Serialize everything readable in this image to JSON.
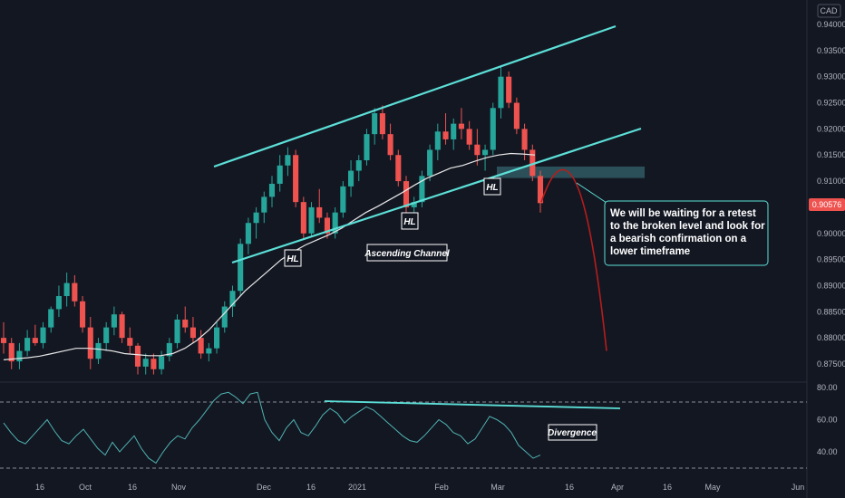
{
  "currency": "CAD",
  "current_price": "0.90576",
  "colors": {
    "background": "#131722",
    "up": "#26a69a",
    "down": "#ef5350",
    "channel": "#5ce0d8",
    "ma": "#e8e8e8",
    "projection": "#b71c1c",
    "zone": "#3a6e78",
    "rsi": "#4fb3b3"
  },
  "annotations": {
    "hl1": "HL",
    "hl2": "HL",
    "hl3": "HL",
    "channel_label": "Ascending Channel",
    "divergence_label": "Divergence",
    "note_lines": [
      "We will be waiting for a retest",
      "to the broken level and look for",
      "a bearish confirmation on a",
      "lower timeframe"
    ]
  },
  "chart_data": {
    "type": "candlestick",
    "price_axis": {
      "ticks": [
        "0.94000",
        "0.93500",
        "0.93000",
        "0.92500",
        "0.92000",
        "0.91500",
        "0.91000",
        "0.90500",
        "0.90000",
        "0.89500",
        "0.89000",
        "0.88500",
        "0.88000",
        "0.87500"
      ],
      "range": [
        0.8728,
        0.943
      ]
    },
    "rsi_axis": {
      "ticks": [
        "80.00",
        "60.00",
        "40.00"
      ],
      "range": [
        26,
        83
      ],
      "levels": [
        70,
        30
      ]
    },
    "x_labels": [
      "16",
      "Oct",
      "16",
      "Nov",
      "Dec",
      "16",
      "2021",
      "Feb",
      "Mar",
      "16",
      "Apr",
      "16",
      "May",
      "Jun"
    ],
    "ohlc": [
      [
        0.88,
        0.883,
        0.877,
        0.879
      ],
      [
        0.879,
        0.88,
        0.874,
        0.8755
      ],
      [
        0.8755,
        0.879,
        0.874,
        0.8775
      ],
      [
        0.8775,
        0.8815,
        0.8765,
        0.88
      ],
      [
        0.88,
        0.8825,
        0.8785,
        0.879
      ],
      [
        0.879,
        0.883,
        0.878,
        0.882
      ],
      [
        0.882,
        0.886,
        0.881,
        0.8855
      ],
      [
        0.8855,
        0.89,
        0.884,
        0.888
      ],
      [
        0.888,
        0.8925,
        0.886,
        0.8905
      ],
      [
        0.8905,
        0.892,
        0.886,
        0.887
      ],
      [
        0.887,
        0.888,
        0.881,
        0.882
      ],
      [
        0.882,
        0.884,
        0.874,
        0.876
      ],
      [
        0.876,
        0.88,
        0.875,
        0.879
      ],
      [
        0.879,
        0.883,
        0.8775,
        0.882
      ],
      [
        0.882,
        0.886,
        0.8805,
        0.8845
      ],
      [
        0.8845,
        0.885,
        0.879,
        0.88
      ],
      [
        0.88,
        0.882,
        0.877,
        0.8785
      ],
      [
        0.8785,
        0.879,
        0.873,
        0.8745
      ],
      [
        0.8745,
        0.877,
        0.873,
        0.876
      ],
      [
        0.876,
        0.877,
        0.873,
        0.874
      ],
      [
        0.874,
        0.8775,
        0.873,
        0.8765
      ],
      [
        0.8765,
        0.88,
        0.8755,
        0.879
      ],
      [
        0.879,
        0.8845,
        0.878,
        0.8835
      ],
      [
        0.8835,
        0.886,
        0.881,
        0.882
      ],
      [
        0.882,
        0.884,
        0.879,
        0.88
      ],
      [
        0.88,
        0.8815,
        0.876,
        0.877
      ],
      [
        0.877,
        0.879,
        0.8755,
        0.878
      ],
      [
        0.878,
        0.883,
        0.877,
        0.882
      ],
      [
        0.882,
        0.887,
        0.881,
        0.886
      ],
      [
        0.886,
        0.89,
        0.884,
        0.889
      ],
      [
        0.889,
        0.899,
        0.888,
        0.898
      ],
      [
        0.898,
        0.903,
        0.896,
        0.902
      ],
      [
        0.902,
        0.905,
        0.899,
        0.904
      ],
      [
        0.904,
        0.908,
        0.902,
        0.907
      ],
      [
        0.907,
        0.911,
        0.905,
        0.9095
      ],
      [
        0.9095,
        0.915,
        0.908,
        0.913
      ],
      [
        0.913,
        0.9165,
        0.911,
        0.915
      ],
      [
        0.915,
        0.916,
        0.905,
        0.906
      ],
      [
        0.906,
        0.907,
        0.899,
        0.9
      ],
      [
        0.9,
        0.906,
        0.8995,
        0.905
      ],
      [
        0.905,
        0.9085,
        0.902,
        0.903
      ],
      [
        0.903,
        0.904,
        0.899,
        0.9
      ],
      [
        0.9,
        0.905,
        0.899,
        0.904
      ],
      [
        0.904,
        0.91,
        0.903,
        0.909
      ],
      [
        0.909,
        0.914,
        0.907,
        0.912
      ],
      [
        0.912,
        0.915,
        0.91,
        0.914
      ],
      [
        0.914,
        0.92,
        0.913,
        0.919
      ],
      [
        0.919,
        0.924,
        0.917,
        0.923
      ],
      [
        0.923,
        0.9245,
        0.918,
        0.919
      ],
      [
        0.919,
        0.921,
        0.914,
        0.915
      ],
      [
        0.915,
        0.916,
        0.909,
        0.91
      ],
      [
        0.91,
        0.911,
        0.904,
        0.905
      ],
      [
        0.905,
        0.907,
        0.904,
        0.906
      ],
      [
        0.906,
        0.912,
        0.905,
        0.911
      ],
      [
        0.911,
        0.917,
        0.91,
        0.916
      ],
      [
        0.916,
        0.921,
        0.914,
        0.9195
      ],
      [
        0.9195,
        0.923,
        0.917,
        0.918
      ],
      [
        0.918,
        0.922,
        0.916,
        0.921
      ],
      [
        0.921,
        0.924,
        0.918,
        0.92
      ],
      [
        0.92,
        0.9215,
        0.916,
        0.917
      ],
      [
        0.917,
        0.92,
        0.913,
        0.915
      ],
      [
        0.915,
        0.917,
        0.912,
        0.916
      ],
      [
        0.916,
        0.925,
        0.915,
        0.924
      ],
      [
        0.924,
        0.932,
        0.922,
        0.93
      ],
      [
        0.93,
        0.931,
        0.924,
        0.925
      ],
      [
        0.925,
        0.926,
        0.919,
        0.92
      ],
      [
        0.92,
        0.921,
        0.914,
        0.916
      ],
      [
        0.916,
        0.917,
        0.91,
        0.911
      ],
      [
        0.911,
        0.912,
        0.904,
        0.9058
      ]
    ],
    "ma": [
      0.8758,
      0.876,
      0.8762,
      0.8765,
      0.877,
      0.8775,
      0.878,
      0.878,
      0.8778,
      0.8775,
      0.877,
      0.8768,
      0.8766,
      0.8766,
      0.877,
      0.878,
      0.8795,
      0.8815,
      0.884,
      0.8865,
      0.889,
      0.891,
      0.893,
      0.895,
      0.8965,
      0.8978,
      0.8988,
      0.8998,
      0.901,
      0.9025,
      0.904,
      0.9052,
      0.9065,
      0.9078,
      0.9092,
      0.9105,
      0.9115,
      0.9125,
      0.913,
      0.9138,
      0.9145,
      0.915,
      0.9153,
      0.9152,
      0.915
    ],
    "rsi": [
      58,
      52,
      47,
      45,
      50,
      55,
      60,
      53,
      47,
      45,
      50,
      54,
      48,
      42,
      38,
      46,
      40,
      45,
      50,
      42,
      36,
      33,
      40,
      46,
      50,
      48,
      55,
      60,
      66,
      72,
      76,
      77,
      74,
      70,
      76,
      77,
      60,
      52,
      47,
      55,
      60,
      52,
      50,
      56,
      63,
      67,
      64,
      58,
      62,
      65,
      68,
      66,
      62,
      58,
      54,
      50,
      47,
      46,
      50,
      55,
      60,
      57,
      52,
      50,
      45,
      48,
      55,
      62,
      60,
      57,
      52,
      44,
      40,
      36,
      38
    ],
    "projection": [
      [
        0.9122,
        0.9105
      ],
      [
        0.912,
        0.911
      ],
      [
        0.9108,
        0.904
      ],
      [
        0.906,
        0.896
      ],
      [
        0.897,
        0.885
      ],
      [
        0.888,
        0.878
      ]
    ],
    "retest_zone": [
      0.9106,
      0.9128
    ]
  }
}
